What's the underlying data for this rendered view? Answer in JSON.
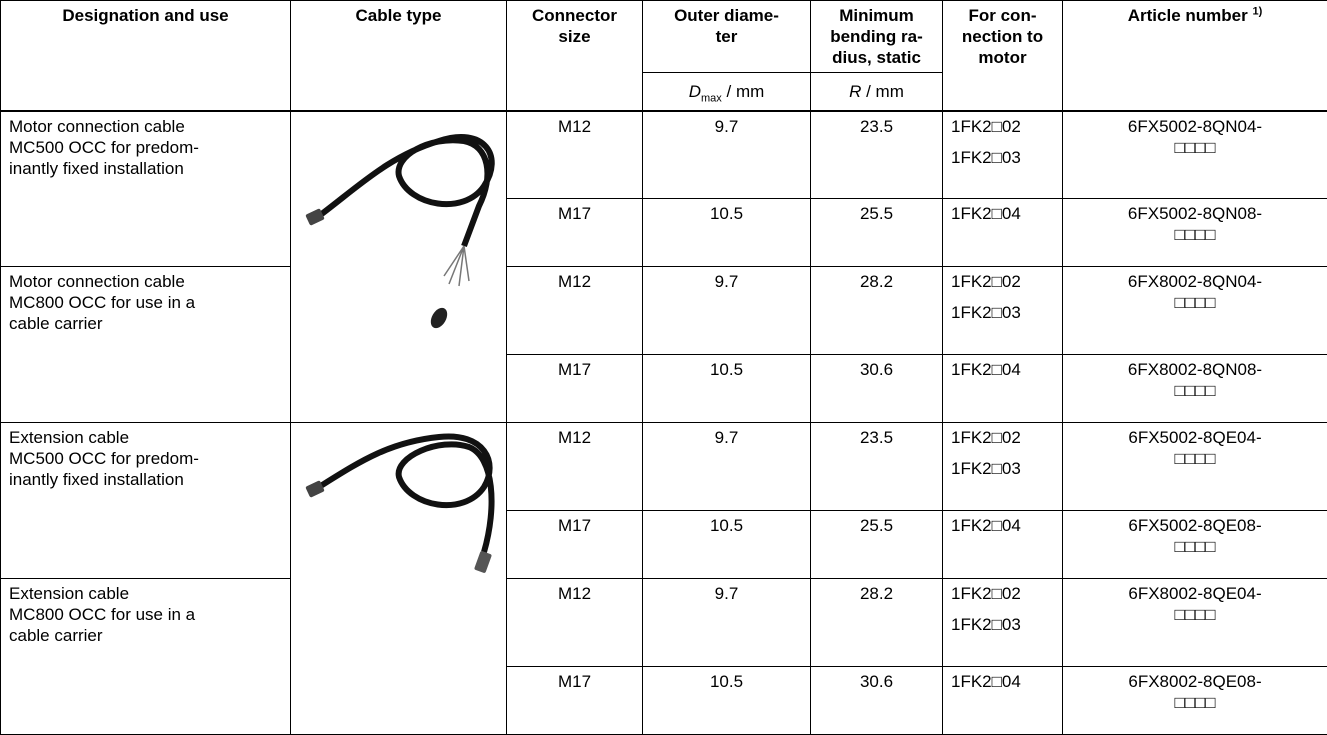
{
  "header": {
    "columns": [
      [
        "Designation and use"
      ],
      [
        "Cable type"
      ],
      [
        "Connector",
        "size"
      ],
      [
        "Outer diame-",
        "ter"
      ],
      [
        "Minimum",
        "bending ra-",
        "dius, static"
      ],
      [
        "For con-",
        "nection to",
        "motor"
      ],
      [
        "Article number"
      ]
    ],
    "article_footnote_ref": "1)",
    "subheaders": {
      "diameter": {
        "symbol": "D",
        "subscript": "max",
        "unit": " / mm"
      },
      "radius": {
        "symbol": "R",
        "unit": " / mm"
      }
    }
  },
  "groups": [
    {
      "designation": [
        "Motor connection cable",
        "MC500 OCC for predom-",
        "inantly fixed installation"
      ],
      "rows": [
        {
          "connector": "M12",
          "diameter": 9.7,
          "radius": 23.5,
          "motors": [
            "1FK2□02",
            "1FK2□03"
          ],
          "article": [
            "6FX5002-8QN04-",
            "□□□□"
          ]
        },
        {
          "connector": "M17",
          "diameter": 10.5,
          "radius": 25.5,
          "motors": [
            "1FK2□04"
          ],
          "article": [
            "6FX5002-8QN08-",
            "□□□□"
          ]
        }
      ]
    },
    {
      "designation": [
        "Motor connection cable",
        "MC800 OCC for use in a",
        "cable carrier"
      ],
      "rows": [
        {
          "connector": "M12",
          "diameter": 9.7,
          "radius": 28.2,
          "motors": [
            "1FK2□02",
            "1FK2□03"
          ],
          "article": [
            "6FX8002-8QN04-",
            "□□□□"
          ]
        },
        {
          "connector": "M17",
          "diameter": 10.5,
          "radius": 30.6,
          "motors": [
            "1FK2□04"
          ],
          "article": [
            "6FX8002-8QN08-",
            "□□□□"
          ]
        }
      ]
    },
    {
      "designation": [
        "Extension cable",
        "MC500 OCC for predom-",
        "inantly fixed installation"
      ],
      "rows": [
        {
          "connector": "M12",
          "diameter": 9.7,
          "radius": 23.5,
          "motors": [
            "1FK2□02",
            "1FK2□03"
          ],
          "article": [
            "6FX5002-8QE04-",
            "□□□□"
          ]
        },
        {
          "connector": "M17",
          "diameter": 10.5,
          "radius": 25.5,
          "motors": [
            "1FK2□04"
          ],
          "article": [
            "6FX5002-8QE08-",
            "□□□□"
          ]
        }
      ]
    },
    {
      "designation": [
        "Extension cable",
        "MC800 OCC for use in a",
        "cable carrier"
      ],
      "rows": [
        {
          "connector": "M12",
          "diameter": 9.7,
          "radius": 28.2,
          "motors": [
            "1FK2□02",
            "1FK2□03"
          ],
          "article": [
            "6FX8002-8QE04-",
            "□□□□"
          ]
        },
        {
          "connector": "M17",
          "diameter": 10.5,
          "radius": 30.6,
          "motors": [
            "1FK2□04"
          ],
          "article": [
            "6FX8002-8QE08-",
            "□□□□"
          ]
        }
      ]
    }
  ]
}
